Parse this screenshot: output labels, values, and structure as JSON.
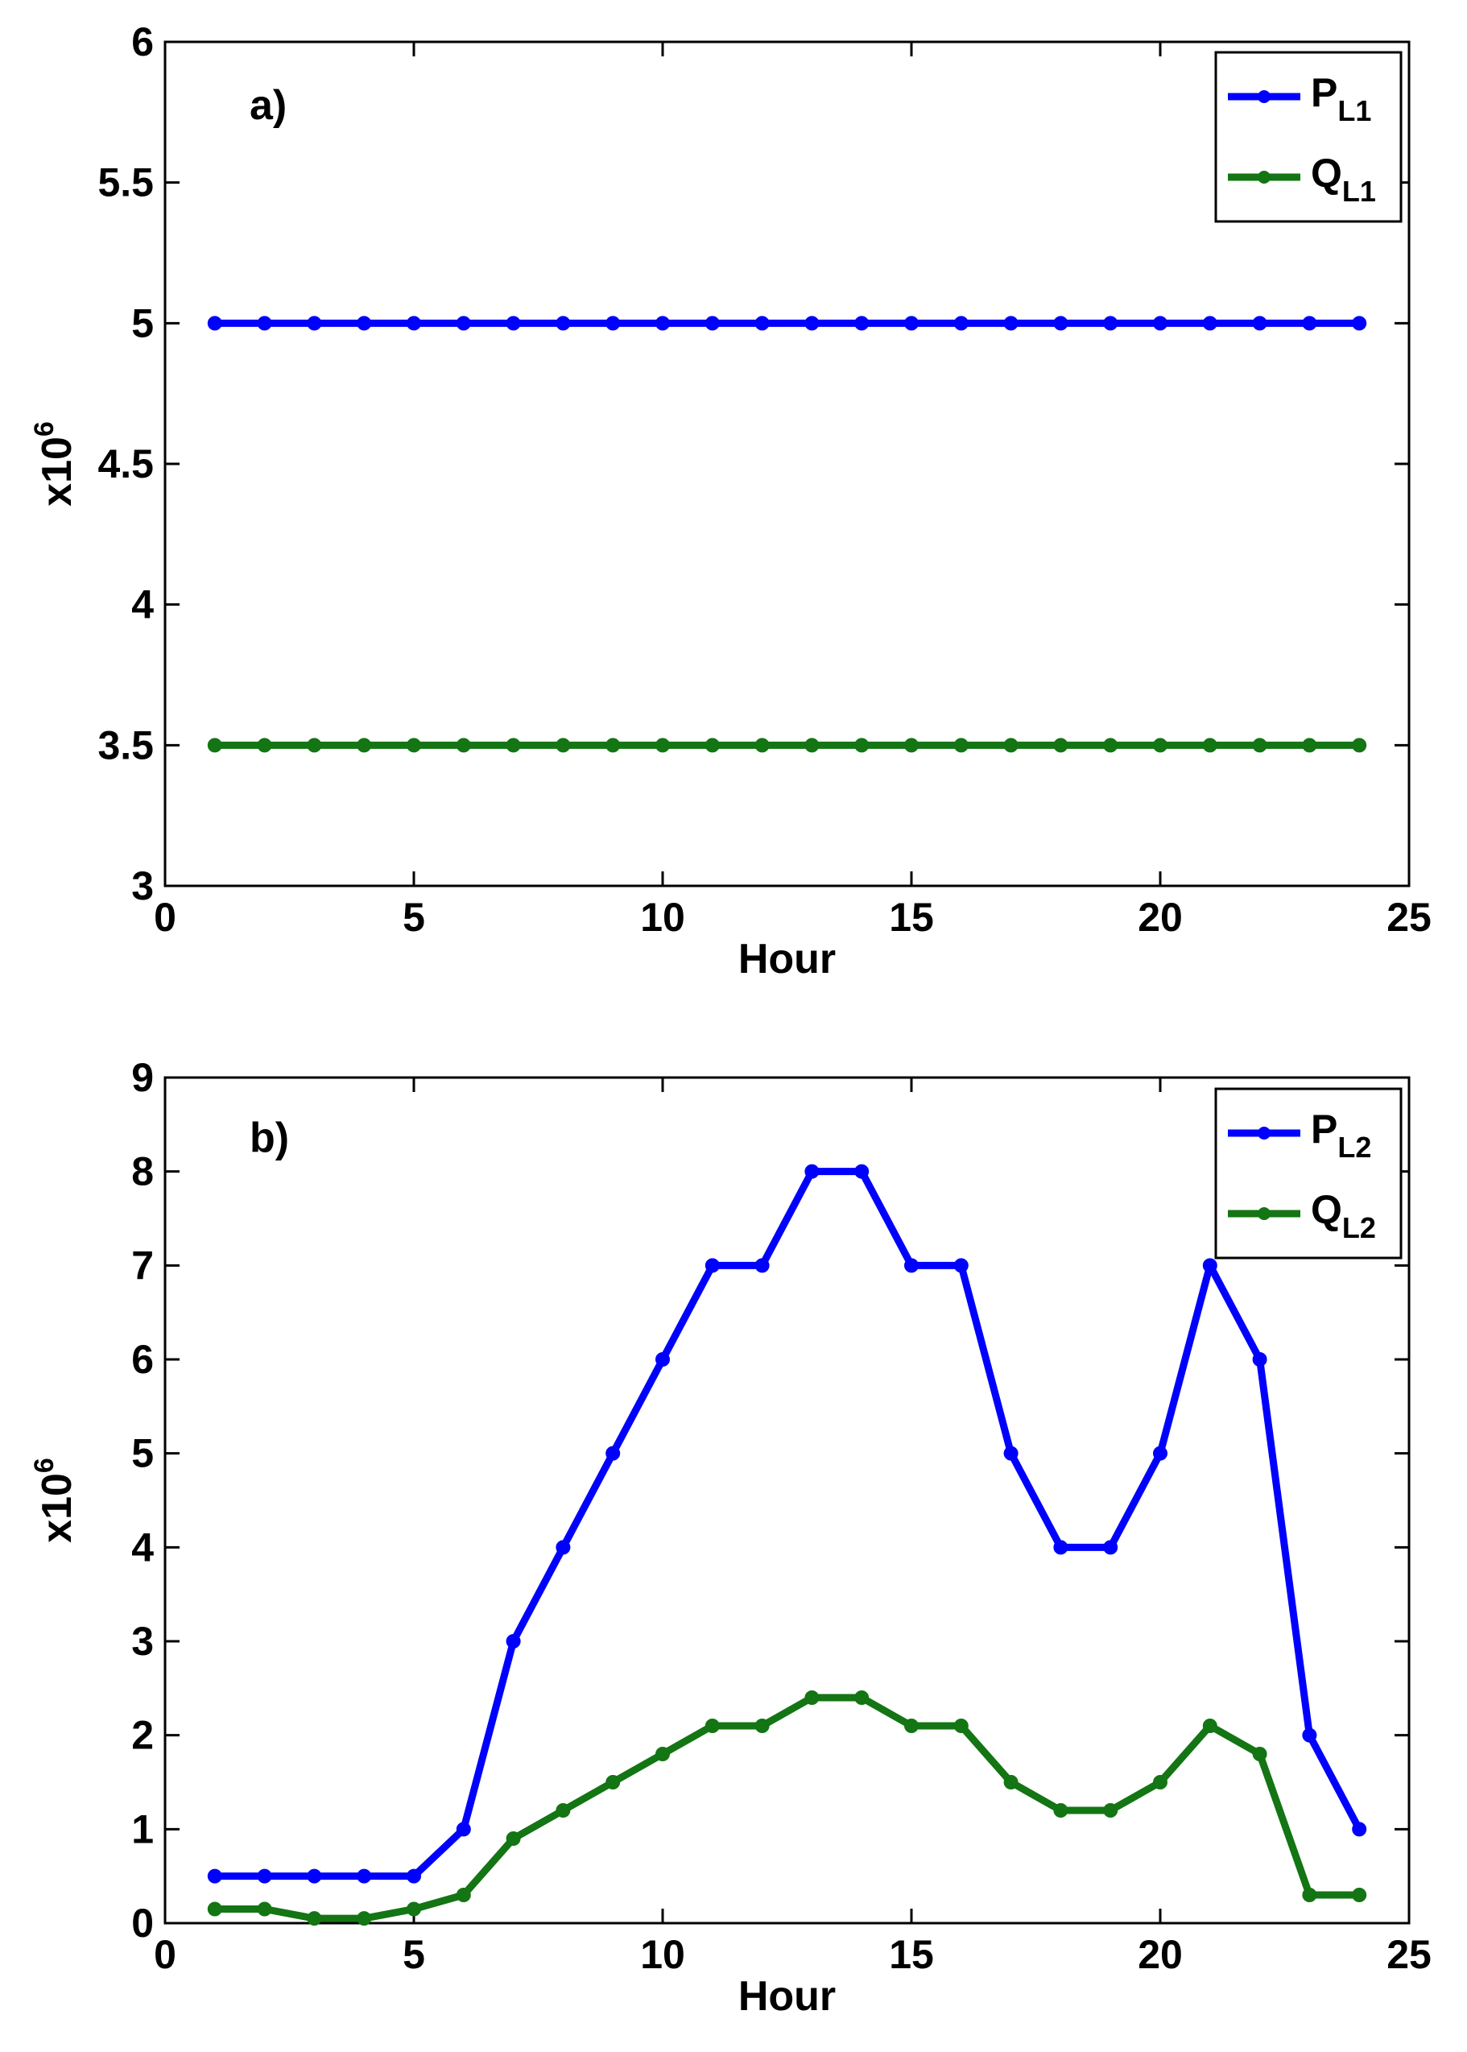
{
  "chart_data": [
    {
      "type": "line",
      "panel_label": "a)",
      "xlabel": "Hour",
      "ylabel": "x10",
      "ylabel_exponent": "6",
      "xlim": [
        0,
        25
      ],
      "ylim": [
        3,
        6
      ],
      "xticks": [
        "0",
        "5",
        "10",
        "15",
        "20",
        "25"
      ],
      "yticks": [
        "3",
        "3.5",
        "4",
        "4.5",
        "5",
        "5.5",
        "6"
      ],
      "grid": false,
      "legend_position": "top-right",
      "x": [
        1,
        2,
        3,
        4,
        5,
        6,
        7,
        8,
        9,
        10,
        11,
        12,
        13,
        14,
        15,
        16,
        17,
        18,
        19,
        20,
        21,
        22,
        23,
        24
      ],
      "series": [
        {
          "name": "P",
          "subscript": "L1",
          "color": "#0000ff",
          "values": [
            5,
            5,
            5,
            5,
            5,
            5,
            5,
            5,
            5,
            5,
            5,
            5,
            5,
            5,
            5,
            5,
            5,
            5,
            5,
            5,
            5,
            5,
            5,
            5
          ]
        },
        {
          "name": "Q",
          "subscript": "L1",
          "color": "#137513",
          "values": [
            3.5,
            3.5,
            3.5,
            3.5,
            3.5,
            3.5,
            3.5,
            3.5,
            3.5,
            3.5,
            3.5,
            3.5,
            3.5,
            3.5,
            3.5,
            3.5,
            3.5,
            3.5,
            3.5,
            3.5,
            3.5,
            3.5,
            3.5,
            3.5
          ]
        }
      ]
    },
    {
      "type": "line",
      "panel_label": "b)",
      "xlabel": "Hour",
      "ylabel": "x10",
      "ylabel_exponent": "6",
      "xlim": [
        0,
        25
      ],
      "ylim": [
        0,
        9
      ],
      "xticks": [
        "0",
        "5",
        "10",
        "15",
        "20",
        "25"
      ],
      "yticks": [
        "0",
        "1",
        "2",
        "3",
        "4",
        "5",
        "6",
        "7",
        "8",
        "9"
      ],
      "grid": false,
      "legend_position": "top-right",
      "x": [
        1,
        2,
        3,
        4,
        5,
        6,
        7,
        8,
        9,
        10,
        11,
        12,
        13,
        14,
        15,
        16,
        17,
        18,
        19,
        20,
        21,
        22,
        23,
        24
      ],
      "series": [
        {
          "name": "P",
          "subscript": "L2",
          "color": "#0000ff",
          "values": [
            0.5,
            0.5,
            0.5,
            0.5,
            0.5,
            1,
            3,
            4,
            5,
            6,
            7,
            7,
            8,
            8,
            7,
            7,
            5,
            4,
            4,
            5,
            7,
            6,
            2,
            1
          ]
        },
        {
          "name": "Q",
          "subscript": "L2",
          "color": "#137513",
          "values": [
            0.15,
            0.15,
            0.05,
            0.05,
            0.15,
            0.3,
            0.9,
            1.2,
            1.5,
            1.8,
            2.1,
            2.1,
            2.4,
            2.4,
            2.1,
            2.1,
            1.5,
            1.2,
            1.2,
            1.5,
            2.1,
            1.8,
            0.3,
            0.3
          ]
        }
      ]
    }
  ]
}
